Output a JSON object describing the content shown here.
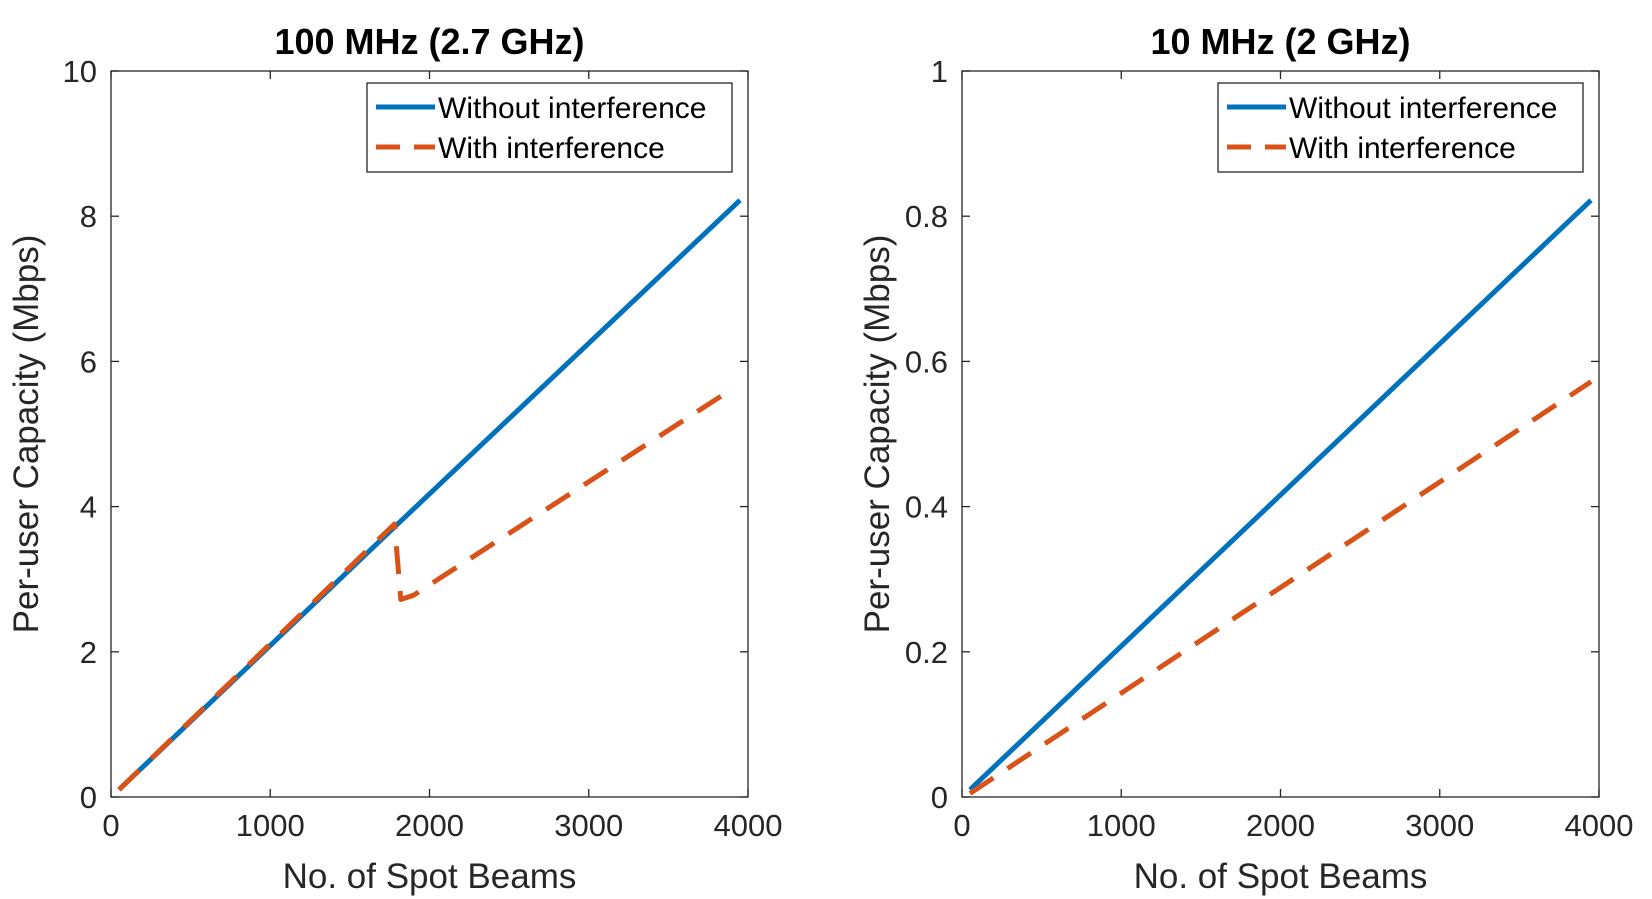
{
  "figure": {
    "background": "#ffffff"
  },
  "chart_data": [
    {
      "type": "line",
      "title": "100 MHz (2.7 GHz)",
      "xlabel": "No. of Spot Beams",
      "ylabel": "Per-user Capacity (Mbps)",
      "xlim": [
        0,
        4000
      ],
      "ylim": [
        0,
        10
      ],
      "xticks": [
        0,
        1000,
        2000,
        3000,
        4000
      ],
      "xtick_labels": [
        "0",
        "1000",
        "2000",
        "3000",
        "4000"
      ],
      "yticks": [
        0,
        2,
        4,
        6,
        8,
        10
      ],
      "ytick_labels": [
        "0",
        "2",
        "4",
        "6",
        "8",
        "10"
      ],
      "grid": false,
      "legend_position": "top-right",
      "series": [
        {
          "name": "Without interference",
          "style": "solid",
          "color": "#0072BD",
          "x": [
            50,
            1800,
            3950
          ],
          "y": [
            0.1,
            3.76,
            8.22
          ]
        },
        {
          "name": "With interference",
          "style": "dashed",
          "color": "#D95319",
          "x": [
            50,
            1780,
            1820,
            1900,
            3900
          ],
          "y": [
            0.1,
            3.76,
            2.72,
            2.78,
            5.62
          ]
        }
      ]
    },
    {
      "type": "line",
      "title": "10 MHz (2 GHz)",
      "xlabel": "No. of Spot Beams",
      "ylabel": "Per-user Capacity (Mbps)",
      "xlim": [
        0,
        4000
      ],
      "ylim": [
        0,
        1
      ],
      "xticks": [
        0,
        1000,
        2000,
        3000,
        4000
      ],
      "xtick_labels": [
        "0",
        "1000",
        "2000",
        "3000",
        "4000"
      ],
      "yticks": [
        0,
        0.2,
        0.4,
        0.6,
        0.8,
        1
      ],
      "ytick_labels": [
        "0",
        "0.2",
        "0.4",
        "0.6",
        "0.8",
        "1"
      ],
      "grid": false,
      "legend_position": "top-right",
      "series": [
        {
          "name": "Without interference",
          "style": "solid",
          "color": "#0072BD",
          "x": [
            50,
            3950
          ],
          "y": [
            0.01,
            0.822
          ]
        },
        {
          "name": "With interference",
          "style": "dashed",
          "color": "#D95319",
          "x": [
            50,
            3950
          ],
          "y": [
            0.005,
            0.572
          ]
        }
      ]
    }
  ]
}
